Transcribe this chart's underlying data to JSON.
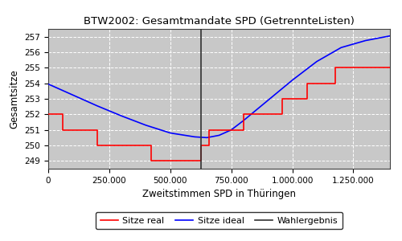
{
  "title": "BTW2002: Gesamtmandate SPD (GetrennteListen)",
  "xlabel": "Zweitstimmen SPD in Thüringen",
  "ylabel": "Gesamtsitze",
  "wahlergebnis_x": 625000,
  "ylim": [
    248.5,
    257.5
  ],
  "xlim": [
    0,
    1400000
  ],
  "yticks": [
    249,
    250,
    251,
    252,
    253,
    254,
    255,
    256,
    257
  ],
  "xtick_labels": [
    "0",
    "250.000",
    "500.000",
    "750.000",
    "1.000.000",
    "1.250.000"
  ],
  "xtick_values": [
    0,
    250000,
    500000,
    750000,
    1000000,
    1250000
  ],
  "background_color": "#c8c8c8",
  "fig_color": "#ffffff",
  "grid_color": "#ffffff",
  "ideal_color": "blue",
  "real_color": "red",
  "wahlergebnis_color": "#303030",
  "legend_labels": [
    "Sitze real",
    "Sitze ideal",
    "Wahlergebnis"
  ],
  "ideal_x": [
    0,
    100000,
    200000,
    300000,
    400000,
    500000,
    600000,
    650000,
    700000,
    750000,
    800000,
    900000,
    1000000,
    1100000,
    1200000,
    1300000,
    1400000
  ],
  "ideal_y": [
    253.95,
    253.25,
    252.55,
    251.9,
    251.3,
    250.8,
    250.55,
    250.5,
    250.65,
    251.0,
    251.6,
    252.9,
    254.2,
    255.4,
    256.3,
    256.75,
    257.05
  ],
  "real_x": [
    0,
    60000,
    60000,
    200000,
    200000,
    420000,
    420000,
    490000,
    490000,
    590000,
    590000,
    625000,
    625000,
    660000,
    660000,
    730000,
    730000,
    800000,
    800000,
    870000,
    870000,
    960000,
    960000,
    1060000,
    1060000,
    1175000,
    1175000,
    1260000,
    1260000,
    1400000
  ],
  "real_y": [
    252,
    252,
    251,
    251,
    250,
    250,
    249,
    249,
    249,
    249,
    249,
    249,
    250,
    250,
    251,
    251,
    251,
    251,
    252,
    252,
    252,
    252,
    253,
    253,
    254,
    254,
    255,
    255,
    255,
    255
  ]
}
